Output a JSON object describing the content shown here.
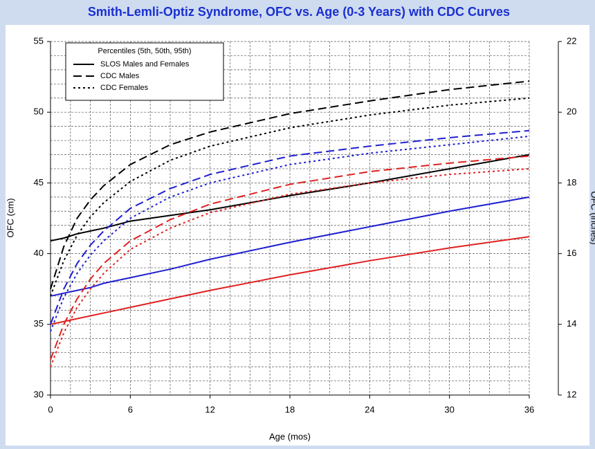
{
  "chart_data": {
    "type": "line",
    "title": "Smith-Lemli-Optiz Syndrome, OFC vs. Age (0-3 Years) with CDC Curves",
    "x_label": "Age (mos)",
    "y_label": "OFC (cm)",
    "y2_label": "OFC (inches)",
    "legend_title": "Percentiles (5th, 50th, 95th)",
    "legend": "top-left",
    "grid": true,
    "x": [
      0,
      1,
      2,
      3,
      4,
      6,
      9,
      12,
      18,
      24,
      30,
      36
    ],
    "xlim": [
      0,
      36
    ],
    "xticks": [
      0,
      6,
      12,
      18,
      24,
      30,
      36
    ],
    "xminorticks": [
      1.5,
      3,
      4.5,
      7.5,
      9,
      10.5,
      13.5,
      15,
      16.5,
      19.5,
      21,
      22.5,
      25.5,
      27,
      28.5,
      31.5,
      33,
      34.5
    ],
    "ylim": [
      30,
      55
    ],
    "yticks": [
      30,
      35,
      40,
      45,
      50,
      55
    ],
    "yminorticks": [
      31,
      32,
      33,
      34,
      36,
      37,
      38,
      39,
      41,
      42,
      43,
      44,
      46,
      47,
      48,
      49,
      51,
      52,
      53,
      54
    ],
    "y2lim": [
      12,
      22
    ],
    "y2ticks": [
      12,
      14,
      16,
      18,
      20,
      22
    ],
    "series": [
      {
        "name": "SLOS Males and Females",
        "dash": "solid",
        "lines": [
          {
            "color": "#000000",
            "values": [
              40.9,
              41.1,
              41.4,
              41.6,
              41.8,
              42.3,
              42.7,
              43.1,
              44.1,
              45.0,
              46.0,
              47.0
            ]
          },
          {
            "color": "#1f1fd0",
            "values": [
              37.0,
              37.2,
              37.4,
              37.6,
              37.9,
              38.3,
              38.9,
              39.6,
              40.8,
              41.9,
              43.0,
              44.0
            ]
          },
          {
            "color": "#e02020",
            "values": [
              35.0,
              35.2,
              35.4,
              35.6,
              35.8,
              36.2,
              36.8,
              37.4,
              38.5,
              39.5,
              40.4,
              41.2
            ]
          }
        ]
      },
      {
        "name": "CDC Males",
        "dash": "dashed",
        "lines": [
          {
            "color": "#000000",
            "values": [
              37.5,
              40.5,
              42.5,
              43.8,
              44.8,
              46.3,
              47.7,
              48.6,
              49.9,
              50.8,
              51.6,
              52.2
            ]
          },
          {
            "color": "#1f1fd0",
            "values": [
              35.0,
              37.5,
              39.3,
              40.6,
              41.6,
              43.2,
              44.6,
              45.6,
              46.9,
              47.6,
              48.2,
              48.7
            ]
          },
          {
            "color": "#e02020",
            "values": [
              32.5,
              35.0,
              36.8,
              38.2,
              39.3,
              40.9,
              42.4,
              43.5,
              44.9,
              45.8,
              46.4,
              46.9
            ]
          }
        ]
      },
      {
        "name": "CDC Females",
        "dash": "dotted",
        "lines": [
          {
            "color": "#000000",
            "values": [
              37.0,
              39.5,
              41.3,
              42.6,
              43.6,
              45.1,
              46.6,
              47.6,
              48.9,
              49.8,
              50.5,
              51.0
            ]
          },
          {
            "color": "#1f1fd0",
            "values": [
              34.5,
              36.9,
              38.6,
              39.9,
              40.9,
              42.5,
              44.0,
              45.0,
              46.3,
              47.1,
              47.7,
              48.3
            ]
          },
          {
            "color": "#e02020",
            "values": [
              32.0,
              34.4,
              36.2,
              37.5,
              38.6,
              40.3,
              41.8,
              42.9,
              44.2,
              45.0,
              45.6,
              46.0
            ]
          }
        ]
      }
    ]
  }
}
